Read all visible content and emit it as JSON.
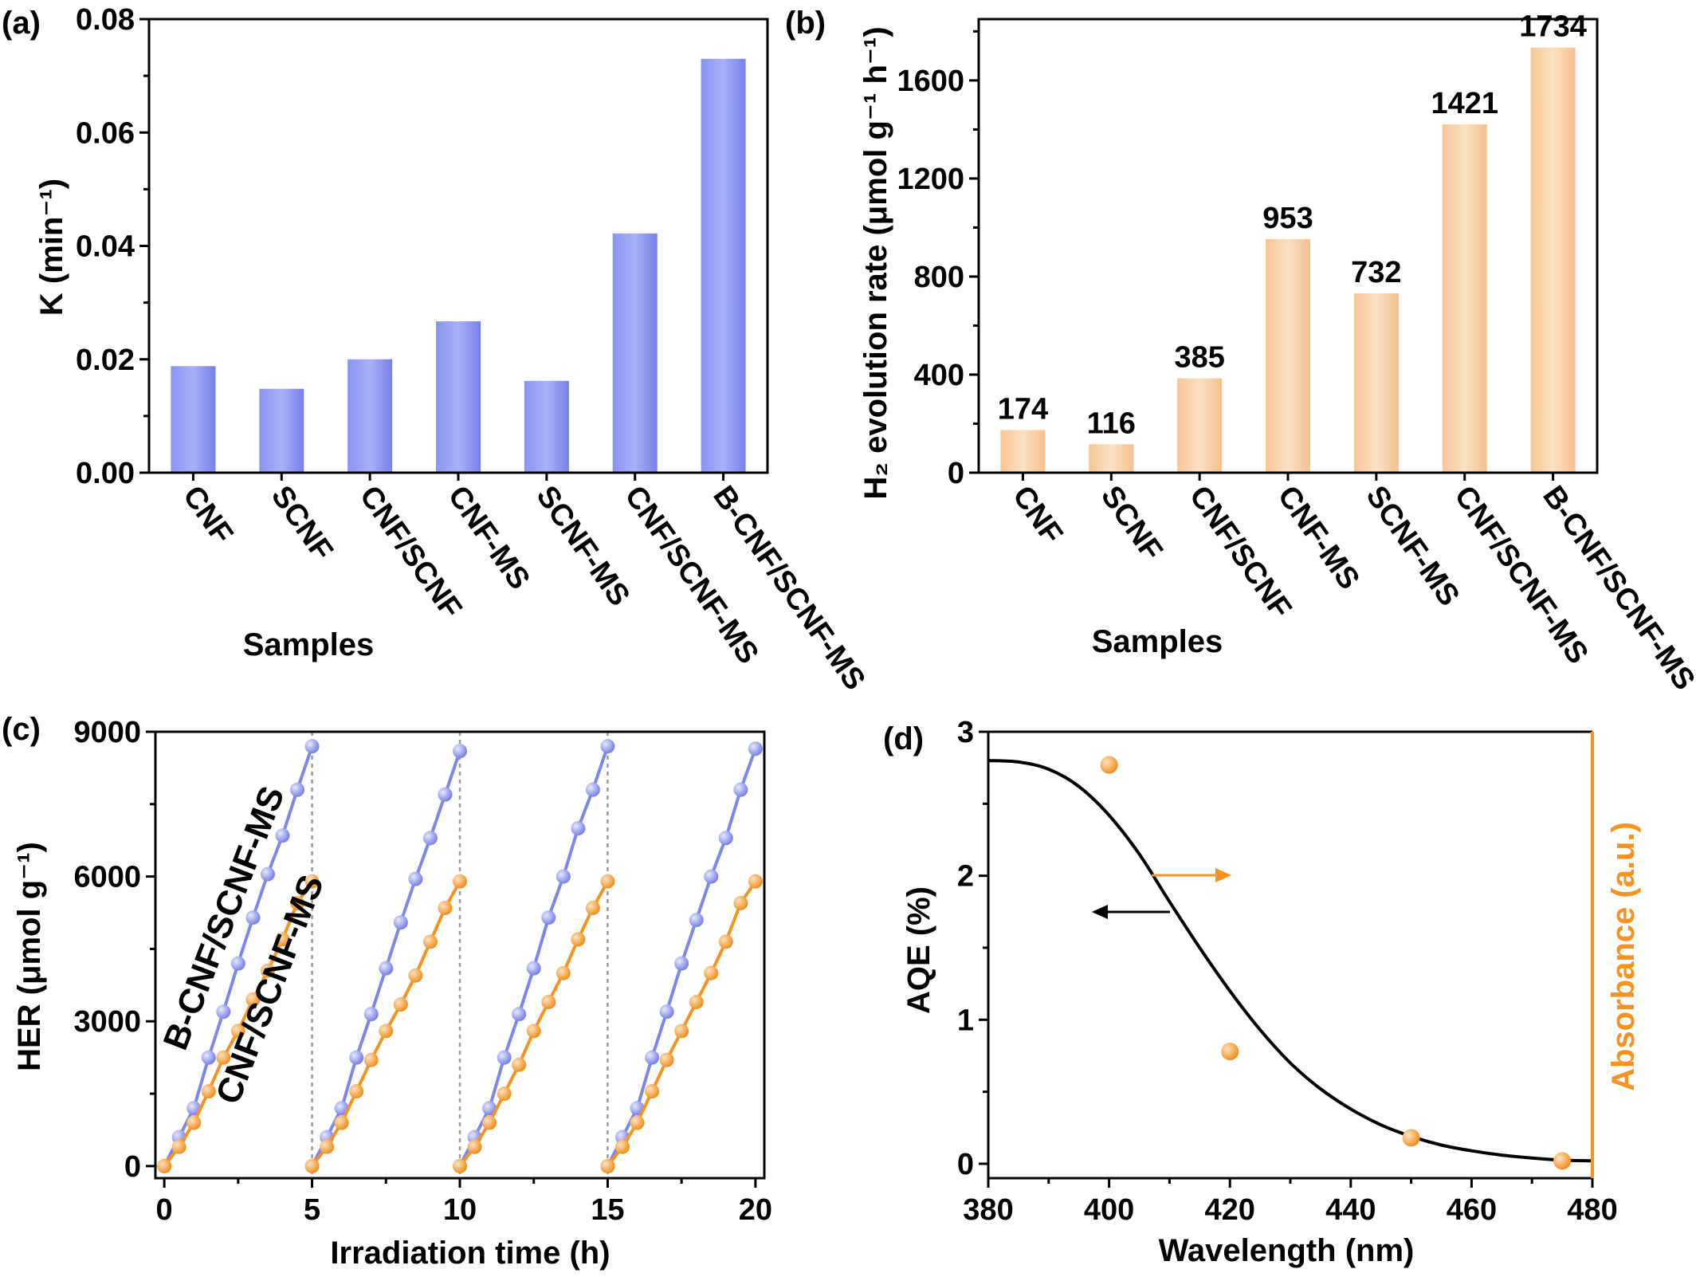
{
  "chart_data": [
    {
      "panel": "(a)",
      "type": "bar",
      "categories": [
        "CNF",
        "SCNF",
        "CNF/SCNF",
        "CNF-MS",
        "SCNF-MS",
        "CNF/SCNF-MS",
        "B-CNF/SCNF-MS"
      ],
      "values": [
        0.0188,
        0.0148,
        0.02,
        0.0267,
        0.0162,
        0.0422,
        0.073
      ],
      "xlabel": "Samples",
      "ylabel": "K (min⁻¹)",
      "ylim": [
        0,
        0.08
      ],
      "yticks": [
        "0.00",
        "0.02",
        "0.04",
        "0.06",
        "0.08"
      ],
      "color": "#7b86ee"
    },
    {
      "panel": "(b)",
      "type": "bar",
      "categories": [
        "CNF",
        "SCNF",
        "CNF/SCNF",
        "CNF-MS",
        "SCNF-MS",
        "CNF/SCNF-MS",
        "B-CNF/SCNF-MS"
      ],
      "values": [
        174,
        116,
        385,
        953,
        732,
        1421,
        1734
      ],
      "data_labels": [
        "174",
        "116",
        "385",
        "953",
        "732",
        "1421",
        "1734"
      ],
      "xlabel": "Samples",
      "ylabel": "H₂ evolution rate (μmol g⁻¹ h⁻¹)",
      "ylim": [
        0,
        1850
      ],
      "yticks": [
        "0",
        "400",
        "800",
        "1200",
        "1600"
      ],
      "color": "#f9cfa3"
    },
    {
      "panel": "(c)",
      "type": "line",
      "xlabel": "Irradiation time (h)",
      "ylabel": "HER (μmol g⁻¹)",
      "xlim": [
        -0.3,
        20.3
      ],
      "ylim": [
        -250,
        9000
      ],
      "xticks": [
        "0",
        "5",
        "10",
        "15",
        "20"
      ],
      "yticks": [
        "0",
        "3000",
        "6000",
        "9000"
      ],
      "cycle_boundaries": [
        5,
        10,
        15
      ],
      "series": [
        {
          "name": "B-CNF/SCNF-MS",
          "color": "#7b86ee",
          "cycles": [
            {
              "x": [
                0,
                0.5,
                1,
                1.5,
                2,
                2.5,
                3,
                3.5,
                4,
                4.5,
                5
              ],
              "y": [
                0,
                600,
                1200,
                2250,
                3200,
                4200,
                5150,
                6050,
                6850,
                7800,
                8700
              ]
            },
            {
              "x": [
                5,
                5.5,
                6,
                6.5,
                7,
                7.5,
                8,
                8.5,
                9,
                9.5,
                10
              ],
              "y": [
                0,
                600,
                1200,
                2250,
                3150,
                4100,
                5050,
                5950,
                6800,
                7700,
                8600
              ]
            },
            {
              "x": [
                10,
                10.5,
                11,
                11.5,
                12,
                12.5,
                13,
                13.5,
                14,
                14.5,
                15
              ],
              "y": [
                0,
                600,
                1200,
                2250,
                3150,
                4100,
                5150,
                6000,
                7000,
                7800,
                8700
              ]
            },
            {
              "x": [
                15,
                15.5,
                16,
                16.5,
                17,
                17.5,
                18,
                18.5,
                19,
                19.5,
                20
              ],
              "y": [
                0,
                600,
                1200,
                2250,
                3200,
                4200,
                5100,
                6000,
                6800,
                7800,
                8650
              ]
            }
          ]
        },
        {
          "name": "CNF/SCNF-MS",
          "color": "#f7921e",
          "cycles": [
            {
              "x": [
                0,
                0.5,
                1,
                1.5,
                2,
                2.5,
                3,
                3.5,
                4,
                4.5,
                5
              ],
              "y": [
                0,
                400,
                900,
                1550,
                2250,
                2800,
                3450,
                4050,
                4700,
                5450,
                5900
              ]
            },
            {
              "x": [
                5,
                5.5,
                6,
                6.5,
                7,
                7.5,
                8,
                8.5,
                9,
                9.5,
                10
              ],
              "y": [
                0,
                400,
                900,
                1550,
                2200,
                2800,
                3350,
                3950,
                4650,
                5350,
                5900
              ]
            },
            {
              "x": [
                10,
                10.5,
                11,
                11.5,
                12,
                12.5,
                13,
                13.5,
                14,
                14.5,
                15
              ],
              "y": [
                0,
                400,
                900,
                1500,
                2100,
                2800,
                3400,
                4000,
                4700,
                5350,
                5900
              ]
            },
            {
              "x": [
                15,
                15.5,
                16,
                16.5,
                17,
                17.5,
                18,
                18.5,
                19,
                19.5,
                20
              ],
              "y": [
                0,
                400,
                900,
                1550,
                2200,
                2800,
                3400,
                4000,
                4650,
                5450,
                5900
              ]
            }
          ]
        }
      ]
    },
    {
      "panel": "(d)",
      "type": "line",
      "xlabel": "Wavelength (nm)",
      "ylabel": "AQE (%)",
      "y2label": "Absorbance (a.u.)",
      "xlim": [
        380,
        480
      ],
      "ylim": [
        -0.1,
        3
      ],
      "xticks": [
        "380",
        "400",
        "420",
        "440",
        "460",
        "480"
      ],
      "yticks": [
        "0",
        "1",
        "2",
        "3"
      ],
      "absorbance_curve": {
        "color": "#000000",
        "x": [
          380,
          385,
          390,
          395,
          400,
          405,
          410,
          415,
          420,
          425,
          430,
          435,
          440,
          445,
          450,
          455,
          460,
          465,
          470,
          475,
          480
        ],
        "y": [
          2.8,
          2.79,
          2.74,
          2.62,
          2.42,
          2.15,
          1.82,
          1.5,
          1.2,
          0.93,
          0.7,
          0.52,
          0.38,
          0.27,
          0.19,
          0.13,
          0.09,
          0.06,
          0.04,
          0.025,
          0.02
        ]
      },
      "aqe_points": {
        "color": "#f7921e",
        "x": [
          400,
          420,
          450,
          475
        ],
        "y": [
          2.77,
          0.78,
          0.18,
          0.02
        ]
      },
      "axis2_color": "#f7921e"
    }
  ]
}
